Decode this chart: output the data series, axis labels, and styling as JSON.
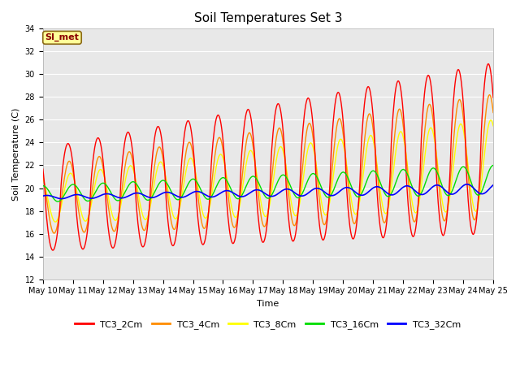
{
  "title": "Soil Temperatures Set 3",
  "xlabel": "Time",
  "ylabel": "Soil Temperature (C)",
  "ylim": [
    12,
    34
  ],
  "x_tick_labels": [
    "May 10",
    "May 11",
    "May 12",
    "May 13",
    "May 14",
    "May 15",
    "May 16",
    "May 17",
    "May 18",
    "May 19",
    "May 20",
    "May 21",
    "May 22",
    "May 23",
    "May 24",
    "May 25"
  ],
  "series": {
    "TC3_2Cm": {
      "color": "#FF0000",
      "lw": 1.0
    },
    "TC3_4Cm": {
      "color": "#FF8C00",
      "lw": 1.0
    },
    "TC3_8Cm": {
      "color": "#FFFF00",
      "lw": 1.0
    },
    "TC3_16Cm": {
      "color": "#00DD00",
      "lw": 1.0
    },
    "TC3_32Cm": {
      "color": "#0000FF",
      "lw": 1.2
    }
  },
  "bg_color": "#E8E8E8",
  "grid_color": "#FFFFFF",
  "annotation_text": "SI_met",
  "annotation_bg": "#FFFF99",
  "annotation_border": "#8B6914",
  "title_fontsize": 11,
  "tick_fontsize": 7,
  "ylabel_fontsize": 8,
  "xlabel_fontsize": 8
}
